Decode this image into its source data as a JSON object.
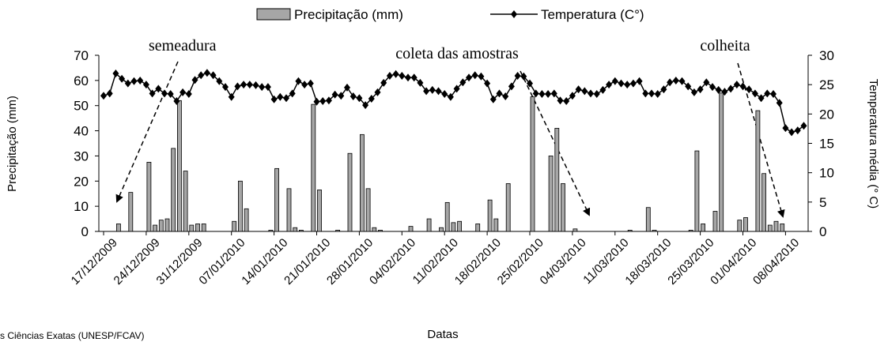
{
  "chart_data": {
    "type": "bar_line",
    "x_label": "Datas",
    "y_label": "Precipitação (mm)",
    "y2_label": "Temperatura média (° C)",
    "annotations": [
      "semeadura",
      "coleta das amostras",
      "colheita"
    ],
    "source": "s Ciências Exatas (UNESP/FCAV)",
    "categories": [
      "17/12/2009",
      null,
      null,
      null,
      null,
      null,
      null,
      "24/12/2009",
      null,
      null,
      null,
      null,
      null,
      null,
      "31/12/2009",
      null,
      null,
      null,
      null,
      null,
      null,
      "07/01/2010",
      null,
      null,
      null,
      null,
      null,
      null,
      "14/01/2010",
      null,
      null,
      null,
      null,
      null,
      null,
      "21/01/2010",
      null,
      null,
      null,
      null,
      null,
      null,
      "28/01/2010",
      null,
      null,
      null,
      null,
      null,
      null,
      "04/02/2010",
      null,
      null,
      null,
      null,
      null,
      null,
      "11/02/2010",
      null,
      null,
      null,
      null,
      null,
      null,
      "18/02/2010",
      null,
      null,
      null,
      null,
      null,
      null,
      "25/02/2010",
      null,
      null,
      null,
      null,
      null,
      null,
      "04/03/2010",
      null,
      null,
      null,
      null,
      null,
      null,
      "11/03/2010",
      null,
      null,
      null,
      null,
      null,
      null,
      "18/03/2010",
      null,
      null,
      null,
      null,
      null,
      null,
      "25/03/2010",
      null,
      null,
      null,
      null,
      null,
      null,
      "01/04/2010",
      null,
      null,
      null,
      null,
      null,
      null,
      "08/04/2010",
      null,
      null,
      null
    ],
    "series": [
      {
        "name": "Precipitação (mm)",
        "type": "bar",
        "color": "#a6a6a6",
        "values": [
          0,
          0,
          3,
          0,
          15.5,
          0,
          0,
          27.5,
          2.5,
          4.5,
          5,
          33,
          52,
          24,
          2.5,
          3,
          3,
          0,
          0,
          0,
          0,
          4,
          20,
          9,
          0,
          0,
          0,
          0.5,
          25,
          0,
          17,
          1.5,
          0.5,
          0,
          50.5,
          16.5,
          0,
          0,
          0.5,
          0,
          31,
          0,
          38.5,
          17,
          1.5,
          0.5,
          0,
          0,
          0,
          0,
          2,
          0,
          0,
          5,
          0,
          1.5,
          11.5,
          3.5,
          4,
          0,
          0,
          3,
          0,
          12.5,
          5,
          0,
          19,
          0,
          0,
          0,
          53.5,
          0,
          0,
          30,
          41,
          19,
          0,
          1,
          0,
          0,
          0,
          0,
          0,
          0,
          0,
          0,
          0.5,
          0,
          0,
          9.5,
          0.5,
          0,
          0,
          0,
          0,
          0,
          0.5,
          32,
          3,
          0,
          8,
          55,
          0,
          0,
          4.5,
          5.5,
          0,
          48,
          23,
          2.5,
          4,
          3,
          0,
          0,
          0,
          0
        ]
      },
      {
        "name": "Temperatura (C°)",
        "type": "line",
        "axis": "y2",
        "color": "#000000",
        "values": [
          23.1,
          23.5,
          26.9,
          26,
          25.2,
          25.6,
          25.7,
          25,
          23.5,
          24.3,
          23.5,
          23.4,
          22.2,
          23.7,
          23.4,
          25.8,
          26.6,
          27,
          26.6,
          25.6,
          24.6,
          22.9,
          24.7,
          25,
          25,
          24.9,
          24.6,
          24.6,
          22.5,
          22.9,
          22.7,
          23.5,
          25.6,
          25,
          25.2,
          22.1,
          22.2,
          22.3,
          23.3,
          23.1,
          24.5,
          23,
          22.7,
          21.5,
          22.6,
          23.7,
          25.3,
          26.5,
          26.8,
          26.5,
          26.2,
          26.2,
          25.3,
          23.9,
          24.1,
          23.9,
          23.4,
          22.9,
          24.3,
          25.4,
          26.2,
          26.6,
          26.4,
          25.2,
          22.5,
          23.5,
          23,
          24.7,
          26.5,
          26.4,
          25.2,
          23.5,
          23.4,
          23.4,
          23.5,
          22.3,
          22.2,
          23.1,
          24.2,
          23.9,
          23.5,
          23.4,
          24.1,
          25,
          25.6,
          25.2,
          25,
          25.2,
          25.6,
          23.5,
          23.5,
          23.4,
          24.2,
          25.4,
          25.7,
          25.6,
          24.7,
          23.7,
          24.2,
          25.4,
          24.6,
          24.1,
          23.8,
          24.3,
          25,
          24.7,
          24.2,
          23.5,
          22.7,
          23.5,
          23.4,
          21.9,
          17.6,
          16.9,
          17.2,
          18
        ]
      }
    ],
    "ylim": [
      0,
      70
    ],
    "yticks": [
      0,
      10,
      20,
      30,
      40,
      50,
      60,
      70
    ],
    "y2lim": [
      0,
      30
    ],
    "y2ticks": [
      0,
      5,
      10,
      15,
      20,
      25,
      30
    ]
  }
}
